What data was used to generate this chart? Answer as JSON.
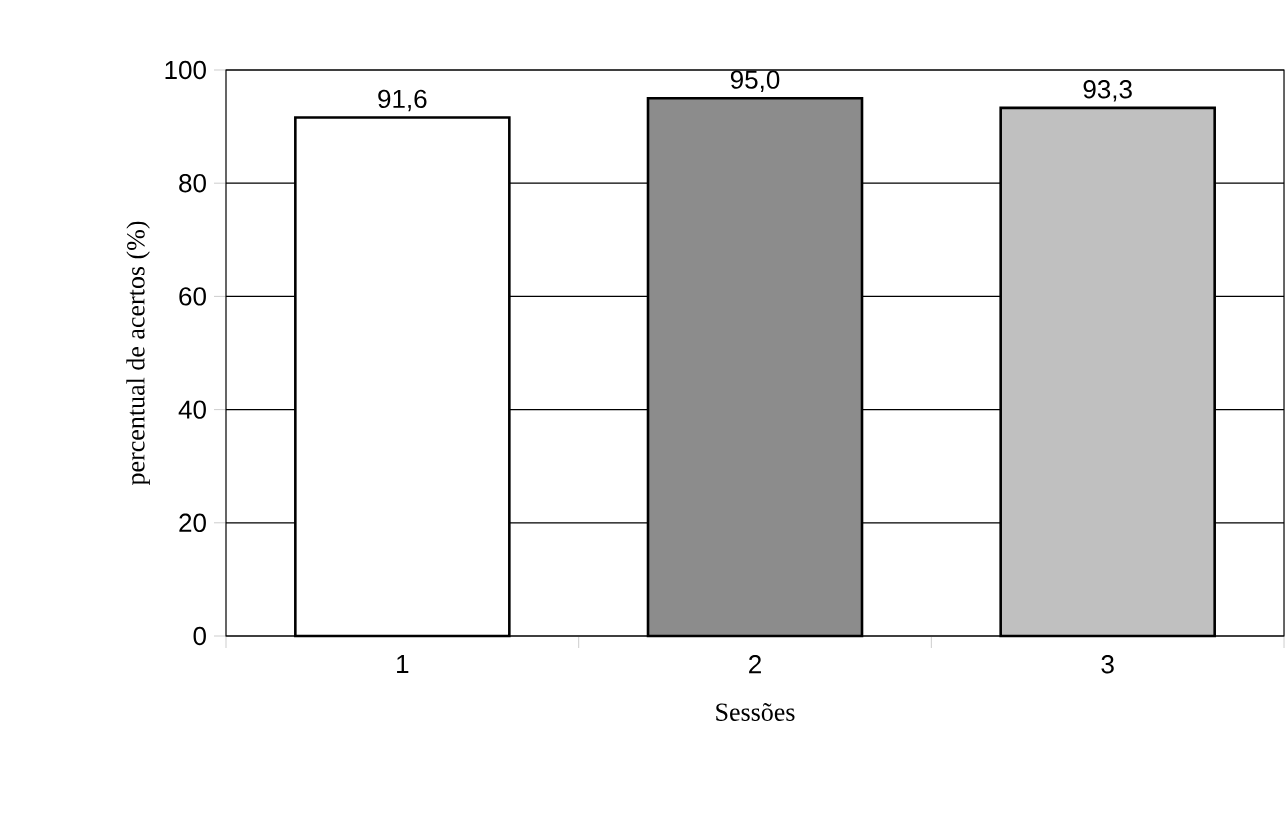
{
  "chart_data": {
    "type": "bar",
    "xlabel": "Sessões",
    "ylabel": "percentual de acertos (%)",
    "categories": [
      "1",
      "2",
      "3"
    ],
    "values": [
      91.6,
      95.0,
      93.3
    ],
    "value_labels": [
      "91,6",
      "95,0",
      "93,3"
    ],
    "colors": [
      "#ffffff",
      "#8c8c8c",
      "#c0c0c0"
    ],
    "ylim": [
      0,
      100
    ],
    "yticks": [
      0,
      20,
      40,
      60,
      80,
      100
    ],
    "grid": "y"
  }
}
